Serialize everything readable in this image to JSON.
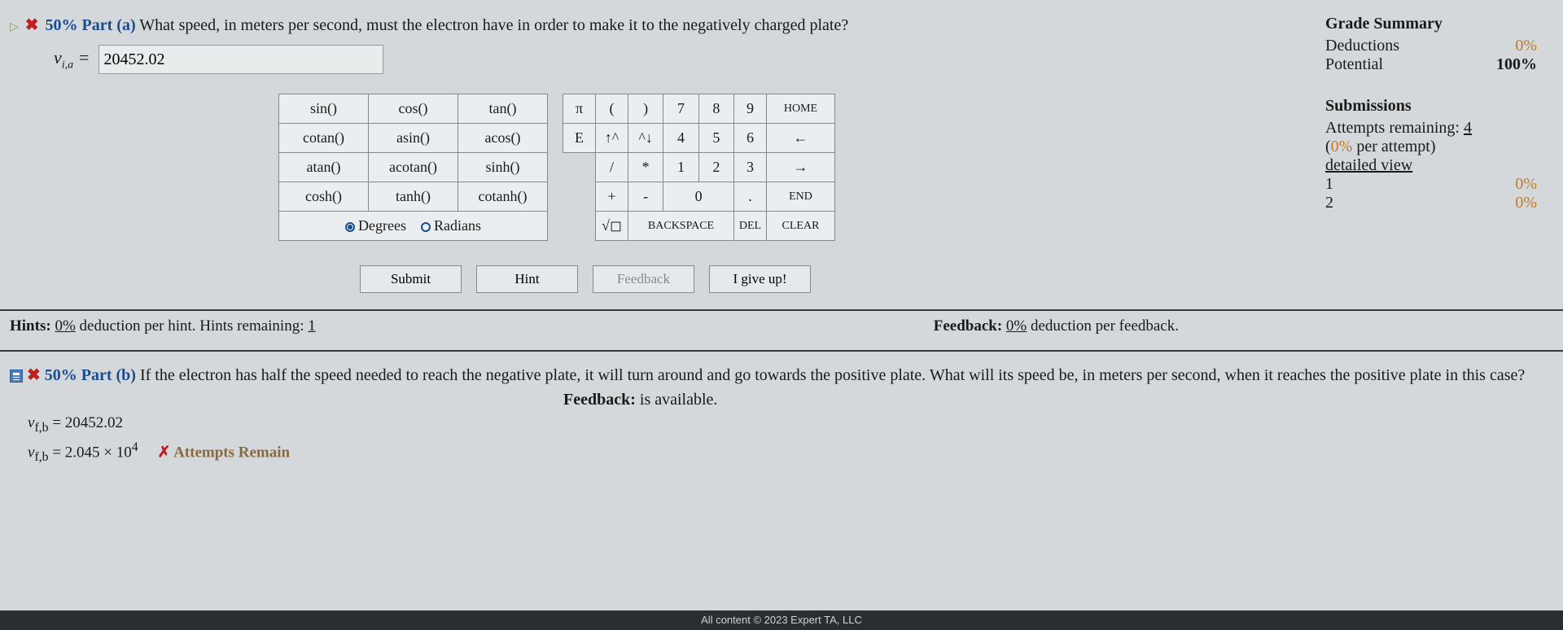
{
  "colors": {
    "bg": "#d4d8db",
    "accent_blue": "#1a4d8f",
    "orange": "#c47a1f",
    "red": "#c02020",
    "cell_bg": "#ebeef0",
    "border": "#888888"
  },
  "part_a": {
    "arrow": "▷",
    "x": "✖",
    "percent": "50%",
    "label": "Part (a)",
    "question": "What speed, in meters per second, must the electron have in order to make it to the negatively charged plate?",
    "var_html": "v",
    "var_sub": "i,a",
    "equals": "=",
    "input_value": "20452.02"
  },
  "grade": {
    "title": "Grade Summary",
    "deductions_label": "Deductions",
    "deductions_value": "0%",
    "potential_label": "Potential",
    "potential_value": "100%"
  },
  "submissions": {
    "title": "Submissions",
    "attempts_label": "Attempts remaining:",
    "attempts_value": "4",
    "per_attempt": "(0% per attempt)",
    "detailed": "detailed view",
    "rows": [
      {
        "n": "1",
        "v": "0%"
      },
      {
        "n": "2",
        "v": "0%"
      }
    ]
  },
  "funcs": [
    [
      "sin()",
      "cos()",
      "tan()"
    ],
    [
      "cotan()",
      "asin()",
      "acos()"
    ],
    [
      "atan()",
      "acotan()",
      "sinh()"
    ],
    [
      "cosh()",
      "tanh()",
      "cotanh()"
    ]
  ],
  "deg_label": "Degrees",
  "rad_label": "Radians",
  "numpad": {
    "r1": [
      "π",
      "(",
      ")",
      "7",
      "8",
      "9",
      "HOME"
    ],
    "r2": [
      "E",
      "↑^",
      "^↓",
      "4",
      "5",
      "6",
      "←"
    ],
    "r3": [
      "",
      "/",
      "*",
      "1",
      "2",
      "3",
      "→"
    ],
    "r4": [
      "",
      "+",
      "-",
      "0",
      ".",
      "END"
    ],
    "r5": [
      "",
      "√◻",
      "BACKSPACE",
      "DEL",
      "CLEAR"
    ]
  },
  "actions": {
    "submit": "Submit",
    "hint": "Hint",
    "feedback": "Feedback",
    "giveup": "I give up!"
  },
  "hints": {
    "label": "Hints:",
    "pct": "0%",
    "text1": " deduction per hint. Hints remaining: ",
    "remaining": "1"
  },
  "feedback_line": {
    "label": "Feedback:",
    "pct": "0%",
    "text": " deduction per feedback."
  },
  "part_b": {
    "x": "✖",
    "percent": "50%",
    "label": "Part (b)",
    "question": "If the electron has half the speed needed to reach the negative plate, it will turn around and go towards the positive plate. What will its speed be, in meters per second, when it reaches the positive plate in this case?",
    "fb_label": "Feedback:",
    "fb_text": " is available.",
    "l1_var": "v",
    "l1_sub": "f,b",
    "l1_eq": " = 20452.02",
    "l2_var": "v",
    "l2_sub": "f,b",
    "l2_eq": " = 2.045 × 10",
    "l2_exp": "4",
    "attempts_x": "✗",
    "attempts_text": " Attempts Remain"
  },
  "footer": "All content © 2023 Expert TA, LLC"
}
